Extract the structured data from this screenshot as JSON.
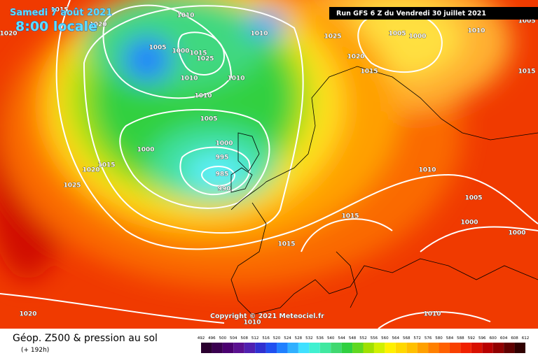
{
  "header": {
    "date": "Samedi 7 août 2021",
    "time": "8:00 locale",
    "run": "Run GFS 6 Z du Vendredi 30 juillet 2021"
  },
  "copyright": "Copyright © 2021 Meteociel.fr",
  "isobar_labels": [
    "1015",
    "1020",
    "1020",
    "1010",
    "1010",
    "1005",
    "1000",
    "1015",
    "1025",
    "1010",
    "1010",
    "1010",
    "1005",
    "1000",
    "1000",
    "995",
    "985",
    "990",
    "1020",
    "1015",
    "1025",
    "1025",
    "1020",
    "1015",
    "1005",
    "1000",
    "1010",
    "1005",
    "1015",
    "1010",
    "1005",
    "1000",
    "1000",
    "1015",
    "1015",
    "1020",
    "1010",
    "1010"
  ],
  "legend": {
    "title": "Géop. Z500 & pression au sol",
    "lead": "(+ 192h)",
    "values": [
      492,
      496,
      500,
      504,
      508,
      512,
      516,
      520,
      524,
      528,
      532,
      536,
      540,
      544,
      548,
      552,
      556,
      560,
      564,
      568,
      572,
      576,
      580,
      584,
      588,
      592,
      596,
      600,
      604,
      608,
      612
    ],
    "colors": [
      "#2a0030",
      "#3a0050",
      "#4a0070",
      "#5a1090",
      "#5020b0",
      "#3030d0",
      "#2050f0",
      "#2080ff",
      "#30b0ff",
      "#40e0ff",
      "#40f0d0",
      "#40e8a0",
      "#40d870",
      "#30d040",
      "#60d820",
      "#a0e000",
      "#d0f000",
      "#fff000",
      "#ffd800",
      "#ffc000",
      "#ffa000",
      "#ff8000",
      "#ff6000",
      "#f84000",
      "#f02000",
      "#d81000",
      "#b80000",
      "#900000",
      "#600000",
      "#300000"
    ]
  }
}
